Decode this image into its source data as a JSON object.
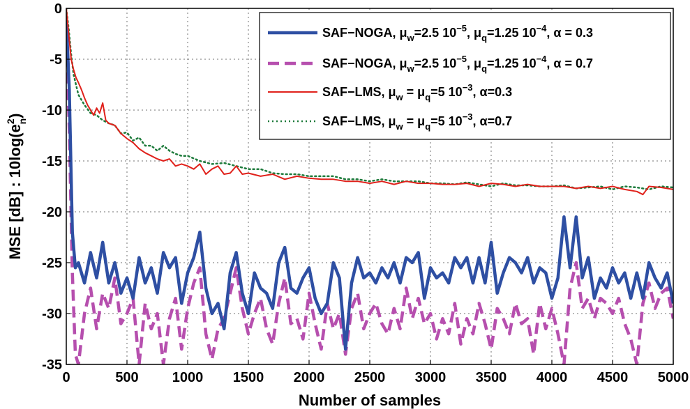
{
  "chart_data": {
    "type": "line",
    "xlabel": "Number of samples",
    "ylabel_parts": [
      "MSE [dB] : 10log(e",
      "2",
      "n",
      ")"
    ],
    "xlim": [
      0,
      5000
    ],
    "ylim": [
      -35,
      0
    ],
    "xticks": [
      0,
      500,
      1000,
      1500,
      2000,
      2500,
      3000,
      3500,
      4000,
      4500,
      5000
    ],
    "yticks": [
      0,
      -5,
      -10,
      -15,
      -20,
      -25,
      -30,
      -35
    ],
    "grid": true,
    "legend_position": "top-right",
    "series": [
      {
        "color": "#2e4fa3",
        "style": "solid-thick",
        "legend": [
          {
            "t": "SAF−NOGA, μ"
          },
          {
            "t": "w",
            "s": "sub"
          },
          {
            "t": "=2.5  10"
          },
          {
            "t": "−5",
            "s": "sup"
          },
          {
            "t": ", μ"
          },
          {
            "t": "q",
            "s": "sub"
          },
          {
            "t": "=1.25  10"
          },
          {
            "t": "−4",
            "s": "sup"
          },
          {
            "t": ", α = 0.3"
          }
        ],
        "x": [
          0,
          25,
          50,
          75,
          100,
          150,
          200,
          250,
          300,
          350,
          400,
          450,
          500,
          550,
          600,
          650,
          700,
          750,
          800,
          850,
          900,
          950,
          1000,
          1050,
          1100,
          1150,
          1200,
          1250,
          1300,
          1350,
          1400,
          1450,
          1500,
          1550,
          1600,
          1650,
          1700,
          1750,
          1800,
          1850,
          1900,
          1950,
          2000,
          2050,
          2100,
          2150,
          2200,
          2250,
          2300,
          2350,
          2400,
          2450,
          2500,
          2550,
          2600,
          2650,
          2700,
          2750,
          2800,
          2850,
          2900,
          2950,
          3000,
          3050,
          3100,
          3150,
          3200,
          3250,
          3300,
          3350,
          3400,
          3450,
          3500,
          3550,
          3600,
          3650,
          3700,
          3750,
          3800,
          3850,
          3900,
          3950,
          4000,
          4050,
          4100,
          4150,
          4200,
          4250,
          4300,
          4350,
          4400,
          4450,
          4500,
          4550,
          4600,
          4650,
          4700,
          4750,
          4800,
          4850,
          4900,
          4950,
          5000
        ],
        "y": [
          -1,
          -8,
          -22,
          -25.5,
          -25,
          -27,
          -24,
          -26.5,
          -23,
          -27,
          -25,
          -28,
          -26.5,
          -28.5,
          -24.5,
          -27,
          -25.5,
          -28,
          -24,
          -25.5,
          -24.5,
          -29,
          -26,
          -24.5,
          -22,
          -27.5,
          -30,
          -29,
          -31.5,
          -26,
          -24,
          -28,
          -30,
          -26,
          -27.5,
          -28,
          -29.5,
          -25,
          -23.5,
          -27.5,
          -28,
          -26.5,
          -25.5,
          -28.5,
          -30,
          -29,
          -25,
          -26.5,
          -33.5,
          -27,
          -24.5,
          -26.5,
          -26,
          -27,
          -25.5,
          -26.5,
          -25,
          -27,
          -24.5,
          -25,
          -24,
          -28.5,
          -25.5,
          -26.5,
          -26,
          -27,
          -24.5,
          -25.5,
          -24.5,
          -27,
          -24.5,
          -27,
          -23,
          -28,
          -26,
          -24.5,
          -25,
          -26,
          -24.5,
          -27,
          -25.5,
          -26,
          -28.5,
          -26.5,
          -20.5,
          -25.5,
          -20.5,
          -26.5,
          -24.5,
          -28.5,
          -26.5,
          -27.5,
          -25.5,
          -27,
          -26,
          -28.5,
          -26,
          -28.5,
          -25,
          -26.5,
          -27.5,
          -26,
          -29
        ]
      },
      {
        "color": "#b64fae",
        "style": "dashed-thick",
        "legend": [
          {
            "t": "SAF−NOGA, μ"
          },
          {
            "t": "w",
            "s": "sub"
          },
          {
            "t": "=2.5  10"
          },
          {
            "t": "−5",
            "s": "sup"
          },
          {
            "t": ", μ"
          },
          {
            "t": "q",
            "s": "sub"
          },
          {
            "t": "=1.25  10"
          },
          {
            "t": "−4",
            "s": "sup"
          },
          {
            "t": ", α = 0.7"
          }
        ],
        "x": [
          0,
          25,
          50,
          75,
          100,
          150,
          200,
          250,
          300,
          350,
          400,
          450,
          500,
          550,
          600,
          650,
          700,
          750,
          800,
          850,
          900,
          950,
          1000,
          1050,
          1100,
          1150,
          1200,
          1250,
          1300,
          1350,
          1400,
          1450,
          1500,
          1550,
          1600,
          1650,
          1700,
          1750,
          1800,
          1850,
          1900,
          1950,
          2000,
          2050,
          2100,
          2150,
          2200,
          2250,
          2300,
          2350,
          2400,
          2450,
          2500,
          2550,
          2600,
          2650,
          2700,
          2750,
          2800,
          2850,
          2900,
          2950,
          3000,
          3050,
          3100,
          3150,
          3200,
          3250,
          3300,
          3350,
          3400,
          3450,
          3500,
          3550,
          3600,
          3650,
          3700,
          3750,
          3800,
          3850,
          3900,
          3950,
          4000,
          4050,
          4100,
          4150,
          4200,
          4250,
          4300,
          4350,
          4400,
          4450,
          4500,
          4550,
          4600,
          4650,
          4700,
          4750,
          4800,
          4850,
          4900,
          4950,
          5000
        ],
        "y": [
          -3,
          -12,
          -26,
          -34,
          -35,
          -30,
          -27.5,
          -31.5,
          -28,
          -29.5,
          -26.5,
          -31,
          -30,
          -28.5,
          -35,
          -29,
          -31.5,
          -30,
          -35,
          -30.5,
          -28.5,
          -33.5,
          -29.5,
          -27,
          -25.5,
          -32,
          -34.5,
          -31.5,
          -30.5,
          -28,
          -25.5,
          -29.5,
          -32,
          -30,
          -28.5,
          -31.5,
          -33,
          -29,
          -26.5,
          -31,
          -30.5,
          -32.5,
          -28,
          -31,
          -33.5,
          -29,
          -31.5,
          -30,
          -34,
          -29.5,
          -28,
          -31.5,
          -30,
          -29,
          -31,
          -32,
          -29.5,
          -31.5,
          -27.5,
          -30.5,
          -28.5,
          -31,
          -30,
          -32.5,
          -30.5,
          -32,
          -29,
          -33,
          -30.5,
          -32,
          -29,
          -31,
          -33.5,
          -29.5,
          -30.5,
          -32,
          -29,
          -31,
          -30.5,
          -34,
          -29,
          -31.5,
          -29.5,
          -32,
          -35,
          -27.5,
          -25,
          -29.5,
          -28.5,
          -30.5,
          -28.5,
          -29,
          -30,
          -28.5,
          -31,
          -32.5,
          -35,
          -29,
          -27,
          -29.5,
          -28,
          -27.5,
          -30.5
        ]
      },
      {
        "color": "#e0211b",
        "style": "solid-thin",
        "legend": [
          {
            "t": "SAF−LMS, μ"
          },
          {
            "t": "w",
            "s": "sub"
          },
          {
            "t": " = μ"
          },
          {
            "t": "q",
            "s": "sub"
          },
          {
            "t": "=5  10"
          },
          {
            "t": "−3",
            "s": "sup"
          },
          {
            "t": ", α=0.3"
          }
        ],
        "x": [
          0,
          20,
          40,
          60,
          80,
          100,
          125,
          150,
          175,
          200,
          225,
          250,
          275,
          300,
          325,
          350,
          400,
          450,
          500,
          550,
          600,
          650,
          700,
          750,
          800,
          850,
          900,
          950,
          1000,
          1050,
          1100,
          1150,
          1200,
          1250,
          1300,
          1350,
          1400,
          1450,
          1500,
          1600,
          1700,
          1800,
          1900,
          2000,
          2100,
          2200,
          2300,
          2400,
          2500,
          2600,
          2700,
          2800,
          2900,
          3000,
          3100,
          3200,
          3300,
          3400,
          3500,
          3600,
          3700,
          3800,
          3900,
          4000,
          4100,
          4200,
          4300,
          4400,
          4500,
          4600,
          4700,
          4750,
          4800,
          4900,
          5000
        ],
        "y": [
          0,
          -2.5,
          -5,
          -6,
          -6.8,
          -7.3,
          -8,
          -8.8,
          -9.5,
          -10,
          -10.5,
          -9.8,
          -10.3,
          -9.3,
          -11,
          -11.3,
          -11.5,
          -12.3,
          -12.8,
          -13.2,
          -13.8,
          -14.2,
          -14.5,
          -14.8,
          -15,
          -14.8,
          -15.5,
          -15.3,
          -15.5,
          -15.8,
          -15.3,
          -16.3,
          -15.8,
          -15.5,
          -16.3,
          -16.2,
          -15.5,
          -16.3,
          -16.2,
          -16.5,
          -16.3,
          -16.8,
          -16.5,
          -16.7,
          -16.8,
          -16.8,
          -17,
          -17,
          -17.2,
          -17,
          -17.3,
          -17,
          -17.2,
          -17.2,
          -17.3,
          -17.3,
          -17.2,
          -17.5,
          -17.2,
          -17.3,
          -17.5,
          -17.3,
          -17.5,
          -17.5,
          -17.5,
          -17.7,
          -17.5,
          -17.7,
          -17.5,
          -17.8,
          -18,
          -18.3,
          -17.5,
          -17.6,
          -17.8
        ]
      },
      {
        "color": "#1e7b3c",
        "style": "dotted",
        "legend": [
          {
            "t": "SAF−LMS, μ"
          },
          {
            "t": "w",
            "s": "sub"
          },
          {
            "t": " = μ"
          },
          {
            "t": "q",
            "s": "sub"
          },
          {
            "t": "=5  10"
          },
          {
            "t": "−3",
            "s": "sup"
          },
          {
            "t": ", α=0.7"
          }
        ],
        "x": [
          0,
          20,
          40,
          60,
          80,
          100,
          150,
          200,
          250,
          300,
          350,
          400,
          450,
          500,
          550,
          600,
          650,
          700,
          750,
          800,
          850,
          900,
          950,
          1000,
          1100,
          1200,
          1300,
          1400,
          1500,
          1600,
          1700,
          1800,
          1900,
          2000,
          2100,
          2200,
          2300,
          2400,
          2500,
          2600,
          2700,
          2800,
          2900,
          3000,
          3100,
          3200,
          3300,
          3400,
          3500,
          3600,
          3700,
          3800,
          3900,
          4000,
          4100,
          4200,
          4300,
          4400,
          4500,
          4600,
          4700,
          4800,
          4900,
          5000
        ],
        "y": [
          0,
          -2,
          -4.5,
          -6.5,
          -7.5,
          -8.5,
          -9.5,
          -10.3,
          -10.5,
          -11,
          -11.3,
          -11.5,
          -12.3,
          -12.2,
          -13,
          -12.7,
          -13.5,
          -13.5,
          -14,
          -13.5,
          -14,
          -14.3,
          -14.5,
          -14.5,
          -15,
          -15.3,
          -15.2,
          -15.5,
          -15.8,
          -15.8,
          -16.2,
          -16.3,
          -16.3,
          -16.5,
          -16.5,
          -16.5,
          -16.8,
          -16.8,
          -17,
          -16.8,
          -17,
          -17,
          -17,
          -17.2,
          -17.2,
          -17.3,
          -17.1,
          -17.3,
          -17.5,
          -17.2,
          -17.4,
          -17.4,
          -17.5,
          -17.5,
          -17.4,
          -17.7,
          -17.6,
          -17.5,
          -17.8,
          -17.5,
          -17.6,
          -17.8,
          -17.5,
          -17.6
        ]
      }
    ]
  }
}
